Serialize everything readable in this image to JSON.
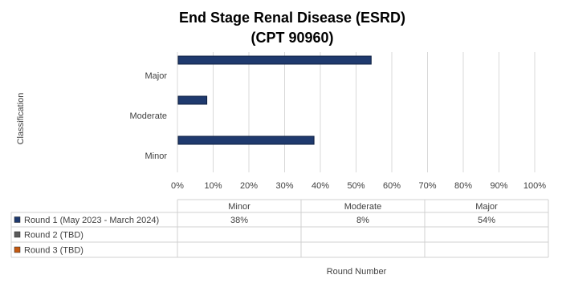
{
  "chart_data": {
    "type": "bar",
    "orientation": "horizontal",
    "title": "End Stage Renal Disease (ESRD)",
    "subtitle": "(CPT 90960)",
    "y_label": "Classification",
    "x_label": "Round Number",
    "categories": [
      "Minor",
      "Moderate",
      "Major"
    ],
    "series": [
      {
        "name": "Round 1 (May 2023 - March 2024)",
        "color": "#1f3a6e",
        "values": [
          38,
          8,
          54
        ],
        "value_labels": [
          "38%",
          "8%",
          "54%"
        ]
      },
      {
        "name": "Round 2 (TBD)",
        "color": "#5a5a5a",
        "values": [
          null,
          null,
          null
        ]
      },
      {
        "name": "Round 3 (TBD)",
        "color": "#c55a11",
        "values": [
          null,
          null,
          null
        ]
      }
    ],
    "xlim": [
      0,
      100
    ],
    "xticks": [
      {
        "value": 0,
        "label": "0%"
      },
      {
        "value": 10,
        "label": "10%"
      },
      {
        "value": 20,
        "label": "20%"
      },
      {
        "value": 30,
        "label": "30%"
      },
      {
        "value": 40,
        "label": "40%"
      },
      {
        "value": 50,
        "label": "50%"
      },
      {
        "value": 60,
        "label": "60%"
      },
      {
        "value": 70,
        "label": "70%"
      },
      {
        "value": 80,
        "label": "80%"
      },
      {
        "value": 90,
        "label": "90%"
      },
      {
        "value": 100,
        "label": "100%"
      }
    ],
    "grid": true,
    "data_table": true
  }
}
